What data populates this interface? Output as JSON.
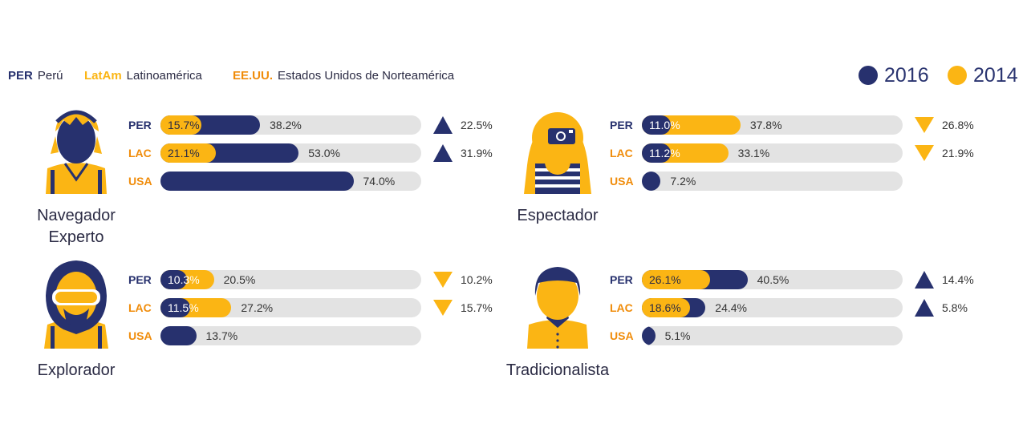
{
  "legend": {
    "abbreviations": [
      {
        "code": "PER",
        "name": "Perú",
        "color": "#27316e"
      },
      {
        "code": "LatAm",
        "name": "Latinoamérica",
        "color": "#fbb514"
      },
      {
        "code": "EE.UU.",
        "name": "Estados Unidos de Norteamérica",
        "color": "#f08c0a"
      }
    ],
    "years": [
      {
        "label": "2016",
        "color": "#27316e"
      },
      {
        "label": "2014",
        "color": "#fbb514"
      }
    ]
  },
  "chart_data": [
    {
      "type": "bar",
      "title": "Navegador\nExperto",
      "avatar": "headphones-user-icon",
      "categories": [
        "PER",
        "LAC",
        "USA"
      ],
      "category_colors": [
        "#27316e",
        "#f08c0a",
        "#f08c0a"
      ],
      "series": [
        {
          "name": "2016",
          "values": [
            38.2,
            53.0,
            74.0
          ],
          "labels": [
            "38.2%",
            "53.0%",
            "74.0%"
          ]
        },
        {
          "name": "2014",
          "values": [
            15.7,
            21.1,
            null
          ],
          "labels": [
            "15.7%",
            "21.1%",
            ""
          ]
        }
      ],
      "change": [
        {
          "direction": "up",
          "label": "22.5%"
        },
        {
          "direction": "up",
          "label": "31.9%"
        },
        null
      ],
      "xlim": [
        0,
        100
      ]
    },
    {
      "type": "bar",
      "title": "Espectador",
      "avatar": "camera-user-icon",
      "categories": [
        "PER",
        "LAC",
        "USA"
      ],
      "category_colors": [
        "#27316e",
        "#f08c0a",
        "#f08c0a"
      ],
      "series": [
        {
          "name": "2016",
          "values": [
            11.0,
            11.2,
            7.2
          ],
          "labels": [
            "11.0%",
            "11.2%",
            "7.2%"
          ]
        },
        {
          "name": "2014",
          "values": [
            37.8,
            33.1,
            null
          ],
          "labels": [
            "37.8%",
            "33.1%",
            ""
          ]
        }
      ],
      "change": [
        {
          "direction": "down",
          "label": "26.8%"
        },
        {
          "direction": "down",
          "label": "21.9%"
        },
        null
      ],
      "xlim": [
        0,
        100
      ]
    },
    {
      "type": "bar",
      "title": "Explorador",
      "avatar": "goggles-user-icon",
      "categories": [
        "PER",
        "LAC",
        "USA"
      ],
      "category_colors": [
        "#27316e",
        "#f08c0a",
        "#f08c0a"
      ],
      "series": [
        {
          "name": "2016",
          "values": [
            10.3,
            11.5,
            13.7
          ],
          "labels": [
            "10.3%",
            "11.5%",
            "13.7%"
          ]
        },
        {
          "name": "2014",
          "values": [
            20.5,
            27.2,
            null
          ],
          "labels": [
            "20.5%",
            "27.2%",
            ""
          ]
        }
      ],
      "change": [
        {
          "direction": "down",
          "label": "10.2%"
        },
        {
          "direction": "down",
          "label": "15.7%"
        },
        null
      ],
      "xlim": [
        0,
        100
      ]
    },
    {
      "type": "bar",
      "title": "Tradicionalista",
      "avatar": "shirt-user-icon",
      "categories": [
        "PER",
        "LAC",
        "USA"
      ],
      "category_colors": [
        "#27316e",
        "#f08c0a",
        "#f08c0a"
      ],
      "series": [
        {
          "name": "2016",
          "values": [
            40.5,
            24.4,
            5.1
          ],
          "labels": [
            "40.5%",
            "24.4%",
            "5.1%"
          ]
        },
        {
          "name": "2014",
          "values": [
            26.1,
            18.6,
            null
          ],
          "labels": [
            "26.1%",
            "18.6%",
            ""
          ]
        }
      ],
      "change": [
        {
          "direction": "up",
          "label": "14.4%"
        },
        {
          "direction": "up",
          "label": "5.8%"
        },
        null
      ],
      "xlim": [
        0,
        100
      ]
    }
  ]
}
